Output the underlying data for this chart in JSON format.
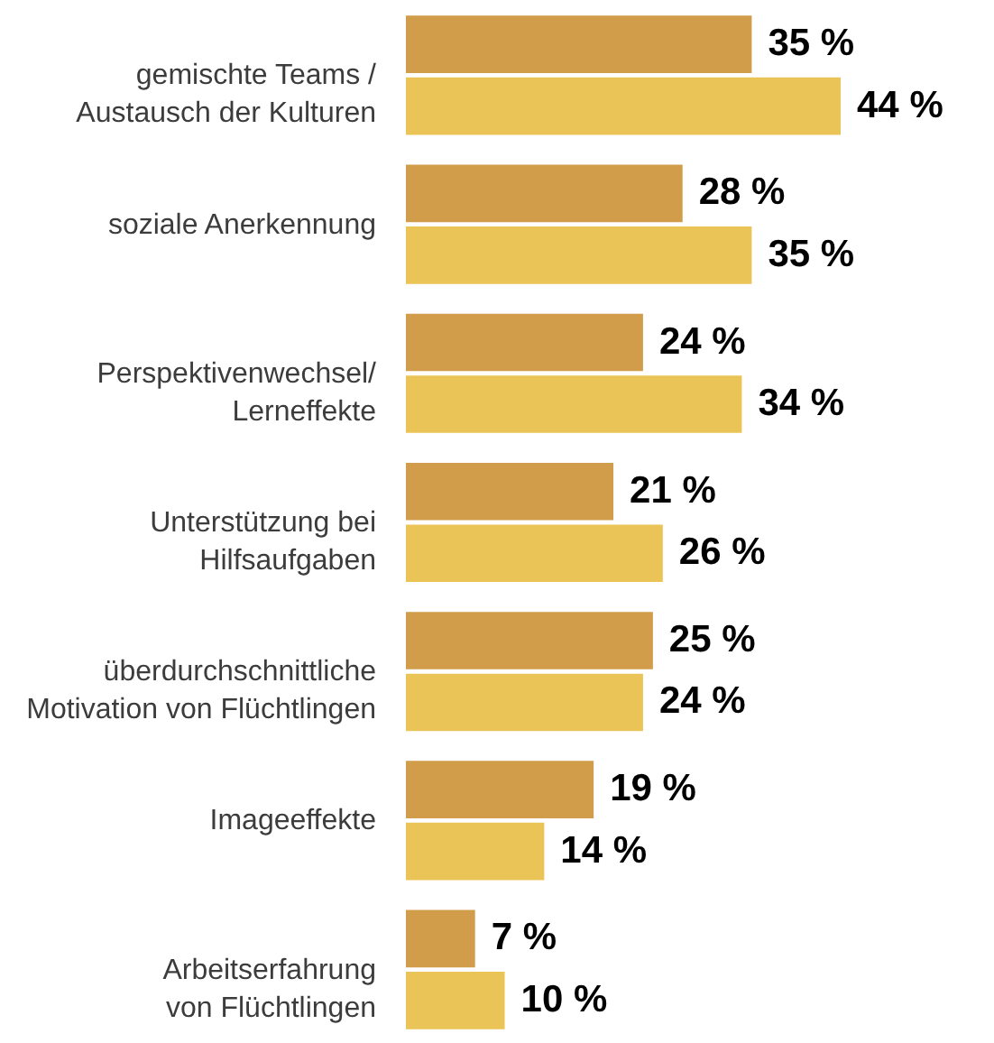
{
  "chart_data": {
    "type": "bar",
    "orientation": "horizontal",
    "categories": [
      "gemischte Teams /\nAustausch der Kulturen",
      "soziale Anerkennung",
      "Perspektivenwechsel/\nLerneffekte",
      "Unterstützung bei\nHilfsaufgaben",
      "überdurchschnittliche\nMotivation von Flüchtlingen",
      "Imageeffekte",
      "Arbeitserfahrung\nvon Flüchtlingen"
    ],
    "series": [
      {
        "color": "#d19d4b",
        "values": [
          35,
          28,
          24,
          21,
          25,
          19,
          7
        ],
        "value_labels": [
          "35 %",
          "28 %",
          "24 %",
          "21 %",
          "25 %",
          "19 %",
          "7 %"
        ]
      },
      {
        "color": "#ebc457",
        "values": [
          44,
          35,
          34,
          26,
          24,
          14,
          10
        ],
        "value_labels": [
          "44 %",
          "35 %",
          "34 %",
          "26 %",
          "24 %",
          "14 %",
          "10 %"
        ]
      }
    ]
  }
}
